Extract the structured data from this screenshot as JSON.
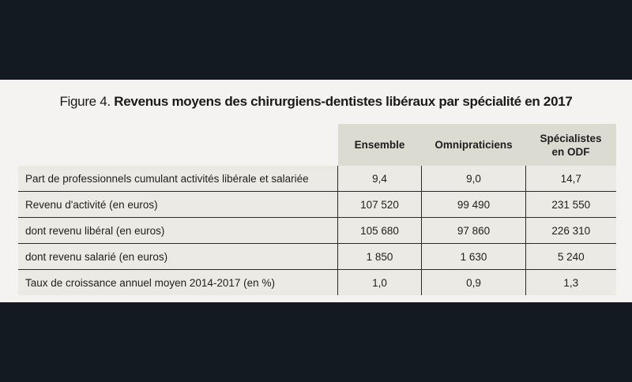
{
  "figure": {
    "prefix": "Figure 4.",
    "title": "Revenus moyens des chirurgiens-dentistes libéraux par spécialité en 2017"
  },
  "table": {
    "columns": [
      "Ensemble",
      "Omnipraticiens",
      "Spécialistes en ODF"
    ],
    "rows": [
      {
        "label": "Part de professionnels cumulant activités libérale et salariée",
        "values": [
          "9,4",
          "9,0",
          "14,7"
        ]
      },
      {
        "label": "Revenu d'activité (en euros)",
        "values": [
          "107 520",
          "99 490",
          "231 550"
        ]
      },
      {
        "label": "dont revenu libéral (en euros)",
        "values": [
          "105 680",
          "97 860",
          "226 310"
        ]
      },
      {
        "label": "dont revenu salarié (en euros)",
        "values": [
          "1 850",
          "1 630",
          "5 240"
        ]
      },
      {
        "label": "Taux de croissance annuel moyen 2014-2017 (en %)",
        "values": [
          "1,0",
          "0,9",
          "1,3"
        ]
      }
    ]
  }
}
